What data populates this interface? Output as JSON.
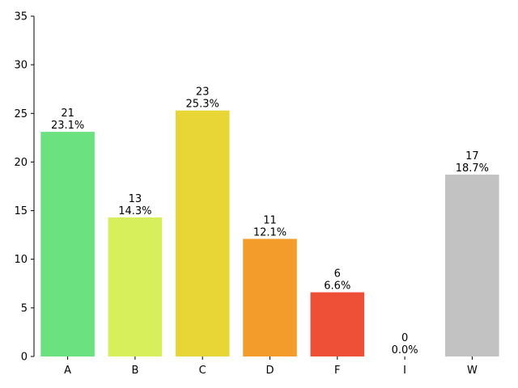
{
  "chart_data": {
    "type": "bar",
    "title": "",
    "xlabel": "",
    "ylabel": "",
    "categories": [
      "A",
      "B",
      "C",
      "D",
      "F",
      "I",
      "W"
    ],
    "values": [
      23.1,
      14.3,
      25.3,
      12.1,
      6.6,
      0.0,
      18.7
    ],
    "counts": [
      "21",
      "13",
      "23",
      "11",
      "6",
      "0",
      "17"
    ],
    "percent_labels": [
      "23.1%",
      "14.3%",
      "25.3%",
      "12.1%",
      "6.6%",
      "0.0%",
      "18.7%"
    ],
    "colors": [
      "#6ce17f",
      "#d6ef5b",
      "#e8d637",
      "#f39c2b",
      "#ed4f37",
      "#e53935",
      "#c2c2c2"
    ],
    "ylim": [
      0,
      35
    ],
    "yticks": [
      "0",
      "5",
      "10",
      "15",
      "20",
      "25",
      "30",
      "35"
    ],
    "grid": false,
    "legend": "none"
  }
}
